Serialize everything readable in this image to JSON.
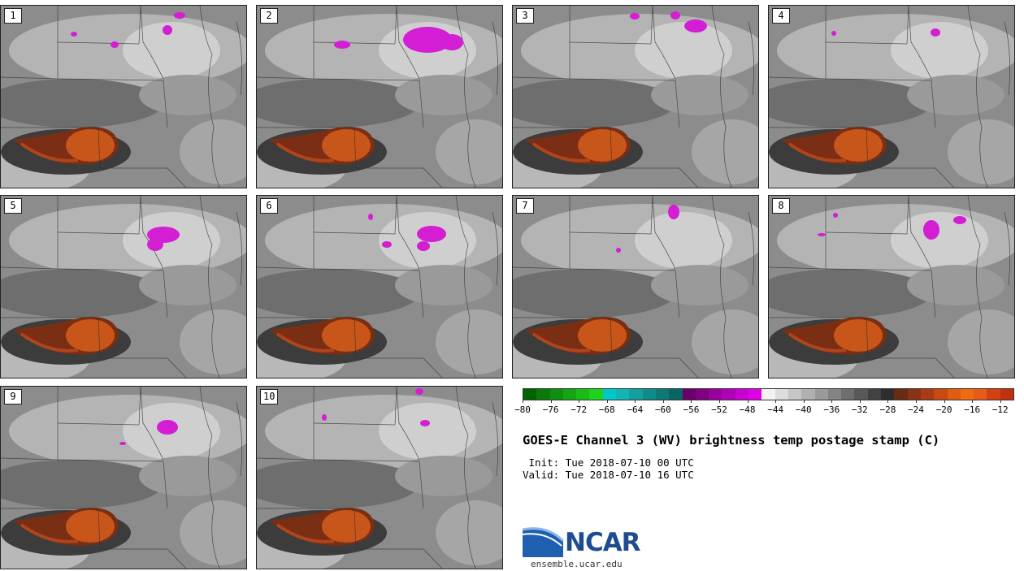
{
  "panels": [
    {
      "label": "1"
    },
    {
      "label": "2"
    },
    {
      "label": "3"
    },
    {
      "label": "4"
    },
    {
      "label": "5"
    },
    {
      "label": "6"
    },
    {
      "label": "7"
    },
    {
      "label": "8"
    },
    {
      "label": "9"
    },
    {
      "label": "10"
    }
  ],
  "colorbar": {
    "tick_labels": [
      "−80",
      "−76",
      "−72",
      "−68",
      "−64",
      "−60",
      "−56",
      "−52",
      "−48",
      "−44",
      "−40",
      "−36",
      "−32",
      "−28",
      "−24",
      "−20",
      "−16",
      "−12"
    ],
    "tick_values": [
      -80,
      -76,
      -72,
      -68,
      -64,
      -60,
      -56,
      -52,
      -48,
      -44,
      -40,
      -36,
      -32,
      -28,
      -24,
      -20,
      -16,
      -12
    ],
    "range": [
      -80,
      -10
    ],
    "colors": [
      "#006400",
      "#0a7a0a",
      "#0f8f0f",
      "#14a514",
      "#19bb19",
      "#1ed31e",
      "#00c8c8",
      "#12b4b4",
      "#10a0a0",
      "#0e8c8c",
      "#0c7878",
      "#0a6464",
      "#6a006a",
      "#800080",
      "#9900a0",
      "#b000b8",
      "#c800d0",
      "#e000e8",
      "#f2f2f2",
      "#dcdcdc",
      "#c6c6c6",
      "#b0b0b0",
      "#9a9a9a",
      "#848484",
      "#6e6e6e",
      "#585858",
      "#424242",
      "#2e2e2e",
      "#6b2a14",
      "#8a3214",
      "#a93c12",
      "#c84a10",
      "#e05c10",
      "#f06a10",
      "#e85a18",
      "#d44010",
      "#c03010"
    ]
  },
  "title": "GOES-E Channel 3 (WV) brightness temp postage stamp (C)",
  "init_line": " Init: Tue 2018-07-10 00 UTC",
  "valid_line": "Valid: Tue 2018-07-10 16 UTC",
  "logo": {
    "name": "NCAR",
    "url": "ensemble.ucar.edu"
  }
}
